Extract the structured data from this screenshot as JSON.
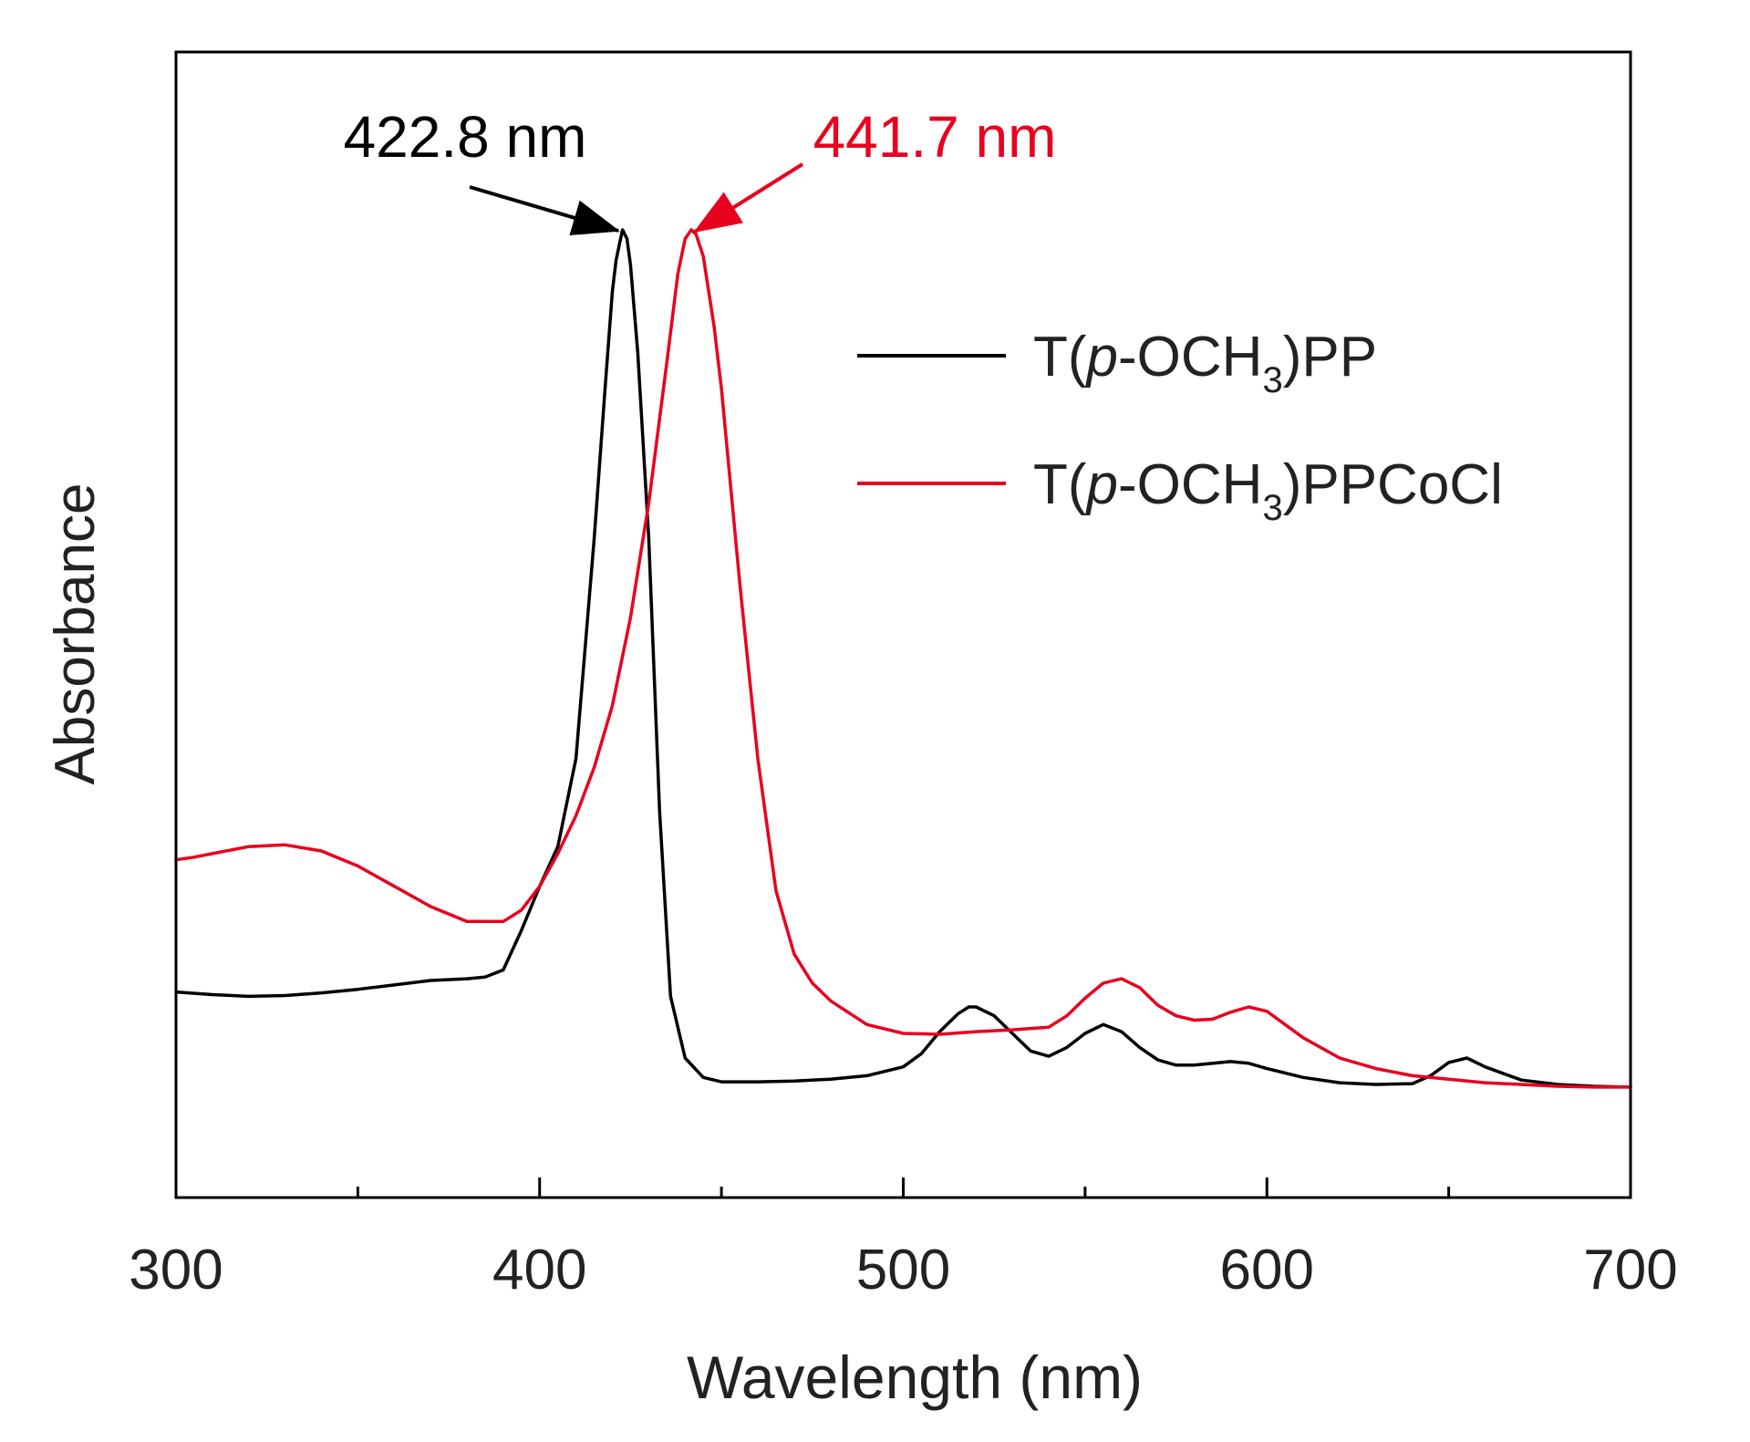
{
  "chart_data": {
    "type": "line",
    "title": "",
    "xlabel": "Wavelength (nm)",
    "ylabel": "Absorbance",
    "xlim": [
      300,
      700
    ],
    "ylim": [
      0,
      1.0
    ],
    "x_ticks": [
      300,
      400,
      500,
      600,
      700
    ],
    "x_tick_labels": [
      "300",
      "400",
      "500",
      "600",
      "700"
    ],
    "x_minor_ticks": [
      350,
      450,
      550,
      650
    ],
    "y_ticks_shown": false,
    "grid": false,
    "legend_position": "top-right",
    "series": [
      {
        "name": "T(p-OCH3)PP",
        "legend_label": {
          "prefix": "T(",
          "italic": "p",
          "mid": "-OCH",
          "sub": "3",
          "suffix": ")PP"
        },
        "color": "#000000",
        "x": [
          300,
          310,
          320,
          330,
          340,
          350,
          360,
          370,
          380,
          385,
          390,
          395,
          400,
          405,
          410,
          415,
          418,
          420,
          421,
          422,
          422.8,
          424,
          425,
          427,
          430,
          433,
          436,
          440,
          445,
          450,
          460,
          470,
          480,
          490,
          500,
          505,
          510,
          515,
          518,
          520,
          525,
          530,
          535,
          540,
          545,
          550,
          555,
          560,
          565,
          570,
          575,
          580,
          590,
          595,
          600,
          610,
          620,
          630,
          640,
          645,
          650,
          655,
          660,
          670,
          680,
          690,
          700
        ],
        "y": [
          0.135,
          0.132,
          0.13,
          0.131,
          0.134,
          0.138,
          0.143,
          0.148,
          0.15,
          0.152,
          0.16,
          0.205,
          0.255,
          0.3,
          0.4,
          0.65,
          0.82,
          0.93,
          0.965,
          0.985,
          1.0,
          0.99,
          0.96,
          0.86,
          0.65,
          0.34,
          0.13,
          0.06,
          0.038,
          0.033,
          0.033,
          0.034,
          0.036,
          0.04,
          0.05,
          0.065,
          0.09,
          0.11,
          0.118,
          0.118,
          0.108,
          0.088,
          0.068,
          0.062,
          0.072,
          0.088,
          0.098,
          0.09,
          0.072,
          0.058,
          0.052,
          0.052,
          0.056,
          0.054,
          0.048,
          0.038,
          0.032,
          0.03,
          0.031,
          0.04,
          0.055,
          0.06,
          0.05,
          0.035,
          0.03,
          0.028,
          0.027
        ]
      },
      {
        "name": "T(p-OCH3)PPCoCl",
        "legend_label": {
          "prefix": "T(",
          "italic": "p",
          "mid": "-OCH",
          "sub": "3",
          "suffix": ")PPCoCl"
        },
        "color": "#e8001f",
        "x": [
          300,
          305,
          310,
          320,
          330,
          340,
          350,
          360,
          370,
          380,
          390,
          395,
          400,
          405,
          410,
          415,
          420,
          425,
          430,
          435,
          438,
          440,
          441.7,
          443,
          445,
          448,
          450,
          455,
          460,
          465,
          470,
          475,
          480,
          490,
          500,
          510,
          520,
          530,
          540,
          545,
          550,
          555,
          560,
          565,
          570,
          575,
          580,
          585,
          590,
          595,
          600,
          605,
          610,
          620,
          630,
          640,
          650,
          660,
          670,
          680,
          690,
          700
        ],
        "y": [
          0.285,
          0.288,
          0.292,
          0.3,
          0.302,
          0.295,
          0.278,
          0.255,
          0.232,
          0.215,
          0.215,
          0.228,
          0.255,
          0.292,
          0.335,
          0.39,
          0.46,
          0.56,
          0.69,
          0.85,
          0.95,
          0.99,
          1.0,
          0.995,
          0.97,
          0.89,
          0.82,
          0.6,
          0.4,
          0.25,
          0.178,
          0.145,
          0.125,
          0.098,
          0.088,
          0.087,
          0.09,
          0.092,
          0.095,
          0.108,
          0.128,
          0.145,
          0.15,
          0.14,
          0.12,
          0.108,
          0.103,
          0.104,
          0.112,
          0.118,
          0.113,
          0.098,
          0.083,
          0.06,
          0.048,
          0.04,
          0.036,
          0.032,
          0.03,
          0.028,
          0.027,
          0.027
        ]
      }
    ],
    "annotations": [
      {
        "text": "422.8 nm",
        "x": 422.8,
        "series": "T(p-OCH3)PP",
        "color": "#000000"
      },
      {
        "text": "441.7 nm",
        "x": 441.7,
        "series": "T(p-OCH3)PPCoCl",
        "color": "#e8001f"
      }
    ]
  }
}
